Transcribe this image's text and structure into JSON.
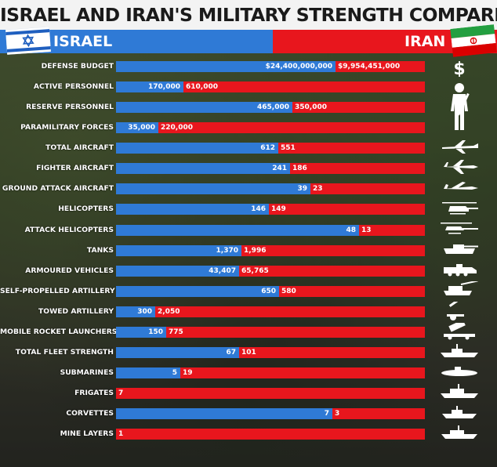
{
  "title": "ISRAEL AND IRAN'S MILITARY STRENGTH COMPARED",
  "header": {
    "israel_label": "ISRAEL",
    "iran_label": "IRAN"
  },
  "colors": {
    "israel": "#2f7ad6",
    "iran": "#e8161d"
  },
  "chart_data": {
    "type": "bar",
    "categories": [
      "DEFENSE BUDGET",
      "ACTIVE PERSONNEL",
      "RESERVE PERSONNEL",
      "PARAMILITARY FORCES",
      "TOTAL AIRCRAFT",
      "FIGHTER AIRCRAFT",
      "GROUND ATTACK AIRCRAFT",
      "HELICOPTERS",
      "ATTACK HELICOPTERS",
      "TANKS",
      "ARMOURED VEHICLES",
      "SELF-PROPELLED ARTILLERY",
      "TOWED ARTILLERY",
      "MOBILE ROCKET LAUNCHERS",
      "TOTAL FLEET STRENGTH",
      "SUBMARINES",
      "FRIGATES",
      "CORVETTES",
      "MINE LAYERS"
    ],
    "series": [
      {
        "name": "ISRAEL",
        "values": [
          24400000000,
          170000,
          465000,
          35000,
          612,
          241,
          39,
          146,
          48,
          1370,
          43407,
          650,
          300,
          150,
          67,
          5,
          0,
          7,
          0
        ],
        "labels": [
          "$24,400,000,000",
          "170,000",
          "465,000",
          "35,000",
          "612",
          "241",
          "39",
          "146",
          "48",
          "1,370",
          "43,407",
          "650",
          "300",
          "150",
          "67",
          "5",
          "",
          "7",
          ""
        ]
      },
      {
        "name": "IRAN",
        "values": [
          9954451000,
          610000,
          350000,
          220000,
          551,
          186,
          23,
          149,
          13,
          1996,
          65765,
          580,
          2050,
          775,
          101,
          19,
          7,
          3,
          1
        ],
        "labels": [
          "$9,954,451,000",
          "610,000",
          "350,000",
          "220,000",
          "551",
          "186",
          "23",
          "149",
          "13",
          "1,996",
          "65,765",
          "580",
          "2,050",
          "775",
          "101",
          "19",
          "7",
          "3",
          "1"
        ]
      }
    ],
    "stacking": "share_of_row_total"
  },
  "icons": [
    "dollar-icon",
    "soldier-icon",
    "transport-plane-icon",
    "fighter-jet-icon",
    "attack-jet-icon",
    "helicopter-icon",
    "attack-helicopter-icon",
    "tank-icon",
    "armoured-vehicle-icon",
    "self-propelled-gun-icon",
    "towed-artillery-icon",
    "rocket-launcher-icon",
    "warship-icon",
    "submarine-icon",
    "frigate-icon",
    "corvette-icon",
    "mine-layer-icon"
  ]
}
